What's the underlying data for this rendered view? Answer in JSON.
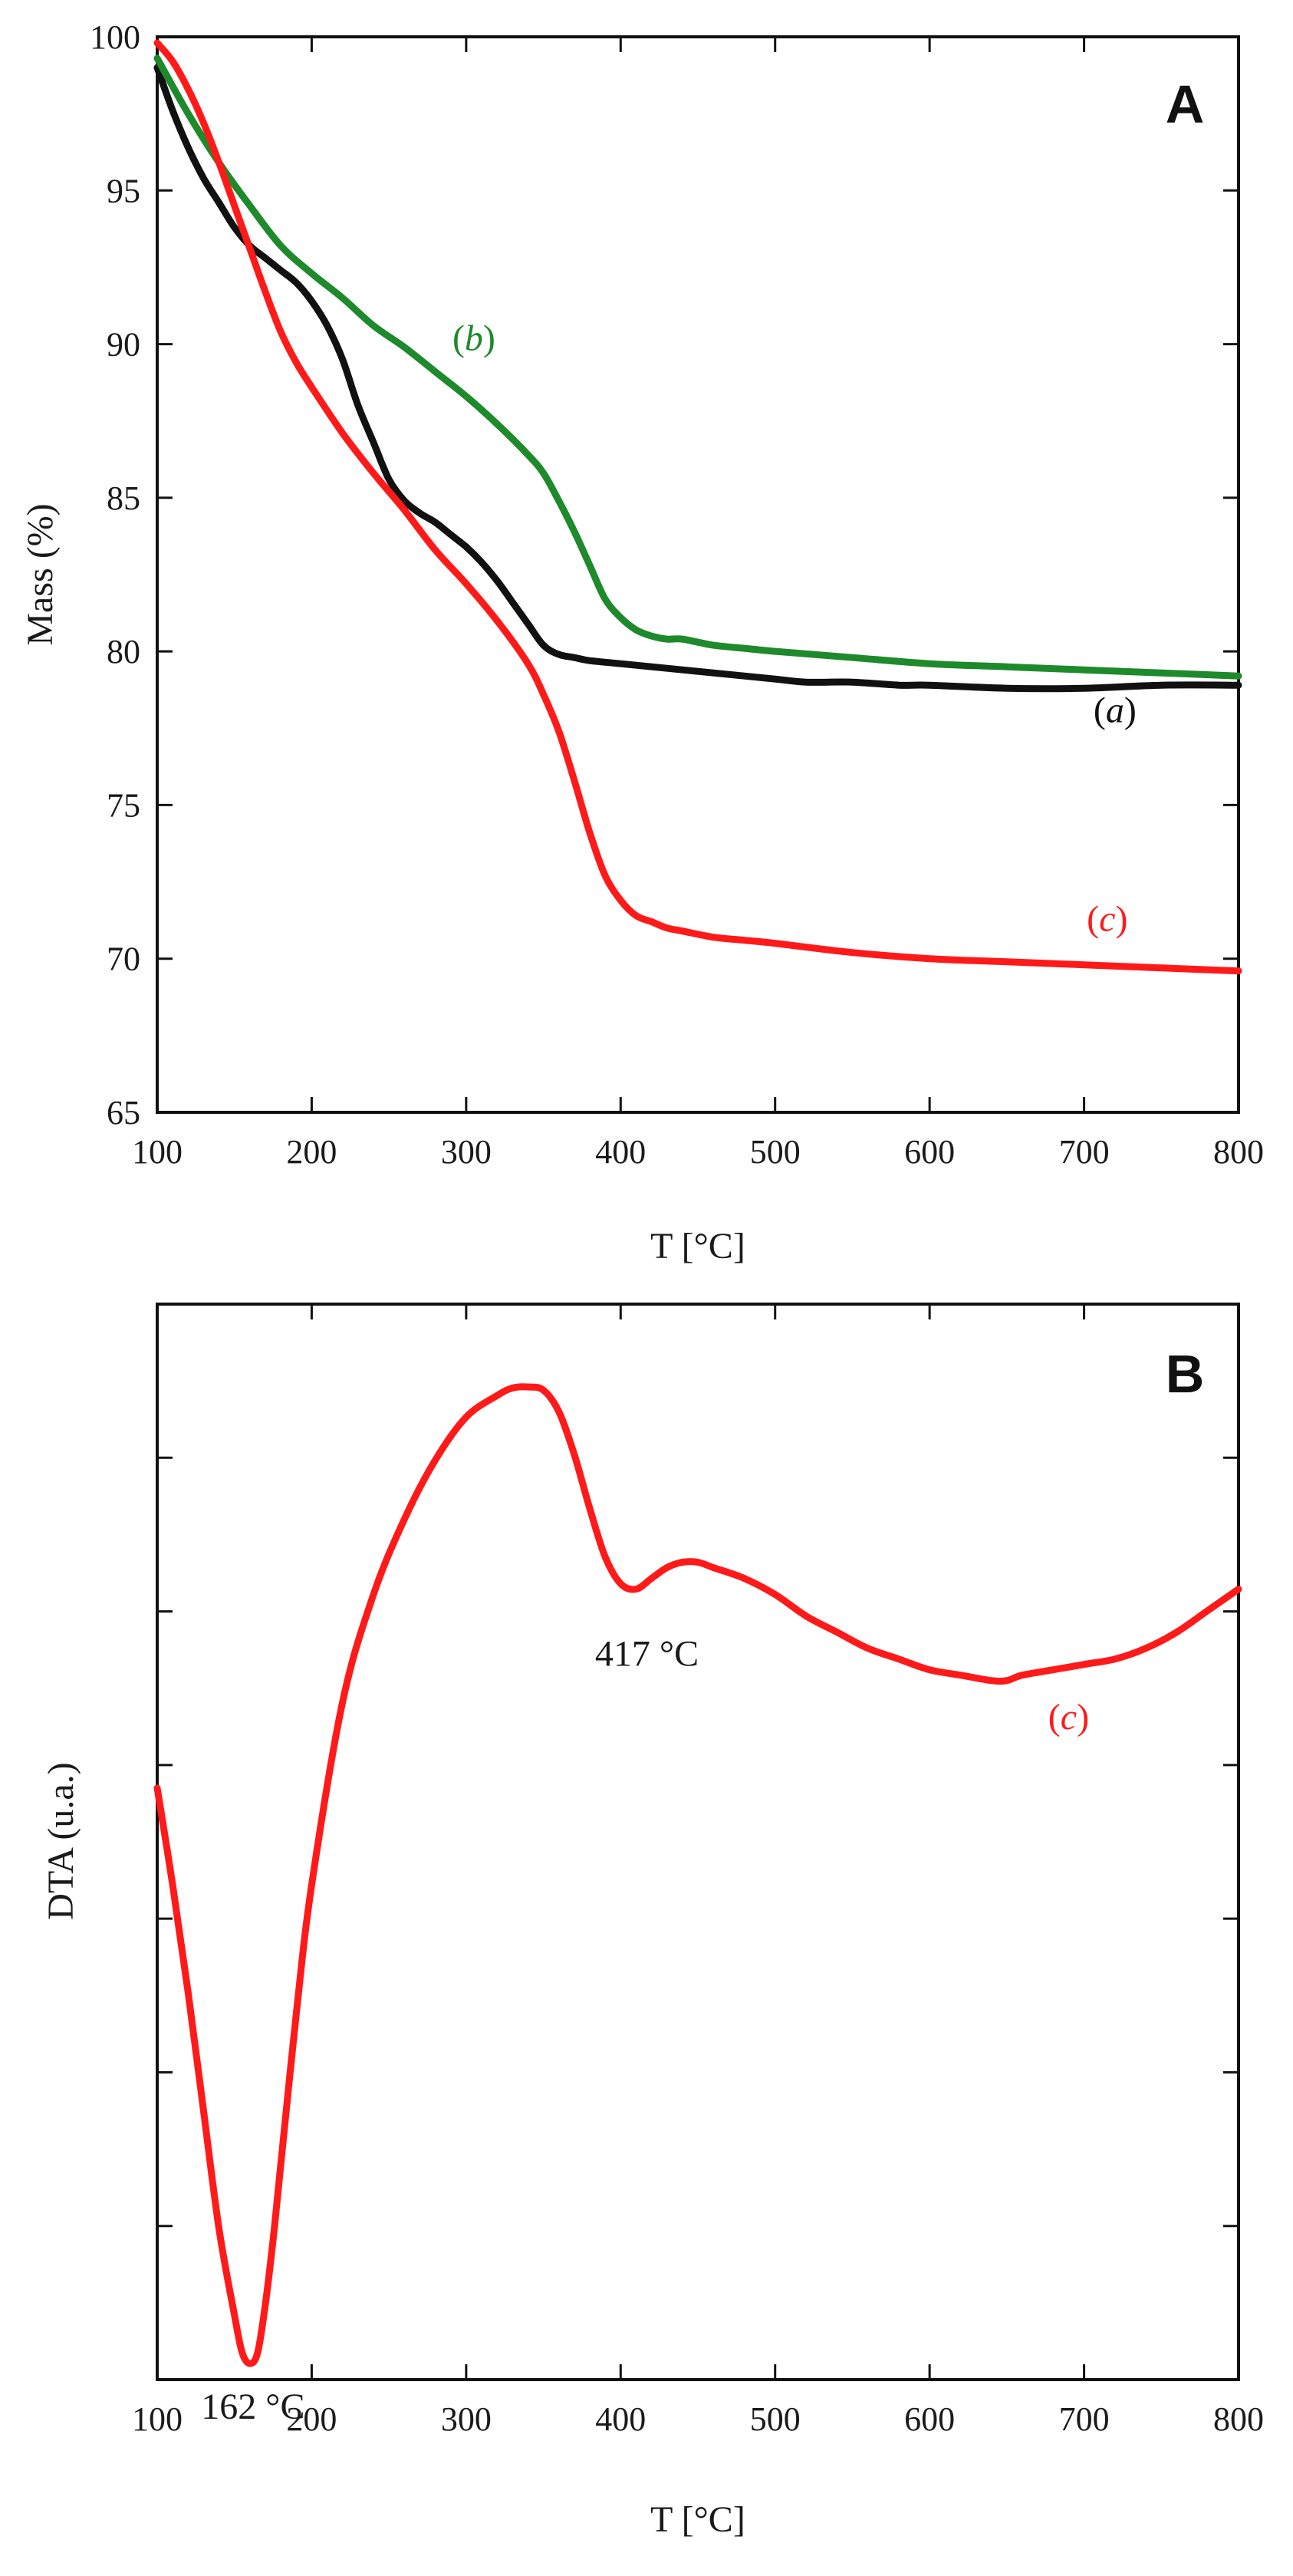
{
  "colors": {
    "a": "#111111",
    "b": "#1e8a2c",
    "c": "#ff1a1a",
    "axis": "#111111"
  },
  "chart_data": [
    {
      "type": "line",
      "panel": "A",
      "title": "",
      "xlabel": "T [°C]",
      "ylabel": "Mass (%)",
      "xlim": [
        100,
        800
      ],
      "ylim": [
        65,
        100
      ],
      "xticks": [
        "100",
        "200",
        "300",
        "400",
        "500",
        "600",
        "700",
        "800"
      ],
      "yticks": [
        "65",
        "70",
        "75",
        "80",
        "85",
        "90",
        "95",
        "100"
      ],
      "series": [
        {
          "name": "(a)",
          "key": "a",
          "label_open": "(",
          "label_letter": "a",
          "label_close": ")",
          "label_at": [
            720,
            77.7
          ],
          "x": [
            100,
            110,
            120,
            130,
            140,
            150,
            160,
            170,
            180,
            190,
            200,
            210,
            220,
            230,
            240,
            250,
            260,
            270,
            280,
            290,
            300,
            310,
            320,
            330,
            340,
            350,
            360,
            370,
            380,
            400,
            420,
            440,
            460,
            480,
            500,
            520,
            550,
            580,
            600,
            650,
            700,
            750,
            800
          ],
          "y": [
            99.0,
            97.6,
            96.4,
            95.4,
            94.6,
            93.8,
            93.2,
            92.8,
            92.4,
            92.0,
            91.4,
            90.6,
            89.5,
            88.0,
            86.8,
            85.6,
            84.9,
            84.5,
            84.2,
            83.8,
            83.4,
            82.9,
            82.3,
            81.6,
            80.9,
            80.2,
            79.9,
            79.8,
            79.7,
            79.6,
            79.5,
            79.4,
            79.3,
            79.2,
            79.1,
            79.0,
            79.0,
            78.9,
            78.9,
            78.8,
            78.8,
            78.9,
            78.9
          ]
        },
        {
          "name": "(b)",
          "key": "b",
          "label_open": "(",
          "label_letter": "b",
          "label_close": ")",
          "label_at": [
            305,
            89.8
          ],
          "x": [
            100,
            120,
            140,
            160,
            180,
            200,
            220,
            240,
            260,
            280,
            300,
            320,
            340,
            350,
            360,
            370,
            380,
            390,
            400,
            410,
            420,
            430,
            440,
            460,
            480,
            500,
            550,
            600,
            650,
            700,
            750,
            800
          ],
          "y": [
            99.3,
            97.5,
            95.9,
            94.5,
            93.2,
            92.3,
            91.5,
            90.6,
            89.9,
            89.1,
            88.3,
            87.4,
            86.4,
            85.8,
            84.9,
            83.9,
            82.8,
            81.7,
            81.1,
            80.7,
            80.5,
            80.4,
            80.4,
            80.2,
            80.1,
            80.0,
            79.8,
            79.6,
            79.5,
            79.4,
            79.3,
            79.2
          ]
        },
        {
          "name": "(c)",
          "key": "c",
          "label_open": "(",
          "label_letter": "c",
          "label_close": ")",
          "label_at": [
            715,
            70.9
          ],
          "x": [
            100,
            110,
            120,
            130,
            140,
            150,
            160,
            170,
            180,
            190,
            200,
            220,
            240,
            260,
            280,
            300,
            320,
            340,
            350,
            360,
            370,
            380,
            390,
            400,
            410,
            420,
            430,
            440,
            460,
            480,
            500,
            550,
            600,
            650,
            700,
            750,
            800
          ],
          "y": [
            99.8,
            99.2,
            98.3,
            97.2,
            95.9,
            94.5,
            93.1,
            91.7,
            90.4,
            89.4,
            88.6,
            87.1,
            85.8,
            84.6,
            83.3,
            82.2,
            81.0,
            79.6,
            78.6,
            77.4,
            75.8,
            74.1,
            72.7,
            71.9,
            71.4,
            71.2,
            71.0,
            70.9,
            70.7,
            70.6,
            70.5,
            70.2,
            70.0,
            69.9,
            69.8,
            69.7,
            69.6
          ]
        }
      ]
    },
    {
      "type": "line",
      "panel": "B",
      "title": "",
      "xlabel": "T [°C]",
      "ylabel": "DTA (u.a.)",
      "xlim": [
        100,
        800
      ],
      "ylim": [
        0,
        10
      ],
      "xticks": [
        "100",
        "200",
        "300",
        "400",
        "500",
        "600",
        "700",
        "800"
      ],
      "yticks": [],
      "series": [
        {
          "name": "(c)",
          "key": "c",
          "label_open": "(",
          "label_letter": "c",
          "label_close": ")",
          "label_at": [
            690,
            6.05
          ],
          "x": [
            100,
            110,
            120,
            130,
            140,
            150,
            155,
            160,
            165,
            170,
            175,
            180,
            190,
            200,
            220,
            240,
            260,
            280,
            300,
            320,
            330,
            340,
            350,
            360,
            370,
            380,
            390,
            400,
            410,
            420,
            430,
            440,
            450,
            460,
            480,
            500,
            520,
            540,
            560,
            580,
            600,
            620,
            640,
            650,
            660,
            680,
            700,
            720,
            740,
            760,
            780,
            800
          ],
          "y": [
            5.5,
            4.6,
            3.6,
            2.5,
            1.4,
            0.6,
            0.25,
            0.15,
            0.25,
            0.7,
            1.3,
            2.0,
            3.4,
            4.6,
            6.3,
            7.3,
            8.0,
            8.55,
            8.95,
            9.15,
            9.22,
            9.23,
            9.2,
            9.0,
            8.6,
            8.1,
            7.65,
            7.4,
            7.35,
            7.45,
            7.55,
            7.6,
            7.6,
            7.55,
            7.45,
            7.3,
            7.1,
            6.95,
            6.8,
            6.7,
            6.6,
            6.55,
            6.5,
            6.5,
            6.55,
            6.6,
            6.65,
            6.7,
            6.8,
            6.95,
            7.15,
            7.35
          ]
        }
      ],
      "annotations": [
        {
          "text": "417 °C",
          "x": 417,
          "y": 6.75,
          "key": "annot_417"
        },
        {
          "text": "162 °C",
          "x": 162,
          "y": -0.25,
          "key": "annot_162"
        }
      ]
    }
  ]
}
